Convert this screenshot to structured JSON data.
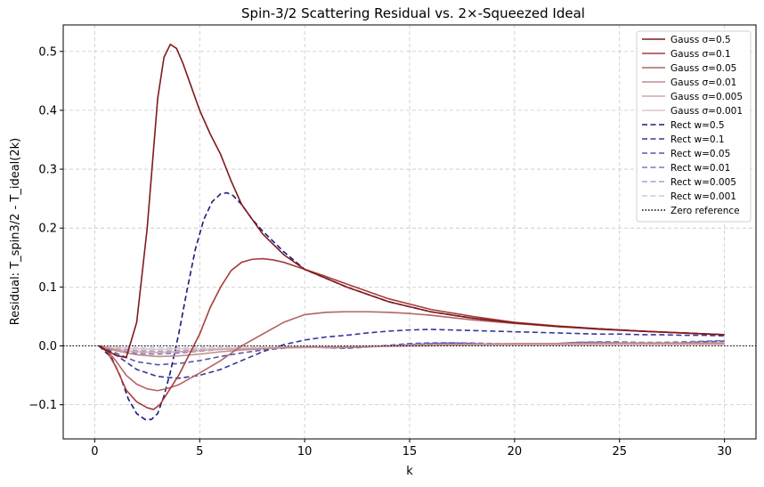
{
  "chart_data": {
    "type": "line",
    "title": "Spin-3/2 Scattering Residual vs. 2×-Squeezed Ideal",
    "xlabel": "k",
    "ylabel": "Residual: T_spin3/2 - T_ideal(2k)",
    "xlim": [
      -1.5,
      31.5
    ],
    "ylim": [
      -0.158,
      0.545
    ],
    "xticks": [
      0,
      5,
      10,
      15,
      20,
      25,
      30
    ],
    "yticks": [
      -0.1,
      0.0,
      0.1,
      0.2,
      0.3,
      0.4,
      0.5
    ],
    "grid": true,
    "legend_position": "top-right",
    "series": [
      {
        "name": "Gauss σ=0.5",
        "color": "#7f1a1a",
        "alpha": 1.0,
        "dash": "solid",
        "x": [
          0.2,
          1.0,
          1.5,
          2.0,
          2.5,
          3.0,
          3.3,
          3.6,
          3.9,
          4.2,
          4.6,
          5.0,
          5.5,
          6.0,
          6.5,
          7.0,
          8.0,
          9.0,
          10.0,
          12.0,
          14.0,
          16.0,
          18.0,
          20.0,
          22.0,
          24.0,
          26.0,
          28.0,
          30.0
        ],
        "y": [
          0.0,
          -0.016,
          -0.02,
          0.04,
          0.2,
          0.42,
          0.49,
          0.512,
          0.505,
          0.48,
          0.44,
          0.4,
          0.36,
          0.325,
          0.28,
          0.24,
          0.19,
          0.155,
          0.13,
          0.1,
          0.075,
          0.058,
          0.047,
          0.039,
          0.033,
          0.029,
          0.025,
          0.022,
          0.019
        ]
      },
      {
        "name": "Gauss σ=0.1",
        "color": "#a63c3c",
        "alpha": 1.0,
        "dash": "solid",
        "x": [
          0.2,
          0.6,
          1.0,
          1.5,
          2.0,
          2.5,
          2.8,
          3.1,
          3.5,
          4.0,
          4.5,
          5.0,
          5.5,
          6.0,
          6.5,
          7.0,
          7.5,
          8.0,
          8.5,
          9.0,
          10.0,
          11.0,
          12.0,
          14.0,
          16.0,
          18.0,
          20.0,
          22.0,
          24.0,
          26.0,
          28.0,
          30.0
        ],
        "y": [
          0.0,
          -0.01,
          -0.035,
          -0.075,
          -0.095,
          -0.105,
          -0.108,
          -0.1,
          -0.078,
          -0.05,
          -0.015,
          0.02,
          0.065,
          0.1,
          0.128,
          0.142,
          0.147,
          0.148,
          0.146,
          0.142,
          0.13,
          0.118,
          0.105,
          0.08,
          0.062,
          0.05,
          0.04,
          0.034,
          0.029,
          0.025,
          0.022,
          0.019
        ]
      },
      {
        "name": "Gauss σ=0.05",
        "color": "#b46464",
        "alpha": 1.0,
        "dash": "solid",
        "x": [
          0.2,
          0.6,
          1.0,
          1.5,
          2.0,
          2.5,
          3.0,
          3.5,
          4.0,
          4.5,
          5.0,
          6.0,
          7.0,
          8.0,
          9.0,
          10.0,
          11.0,
          12.0,
          13.0,
          14.0,
          15.0,
          16.0,
          18.0,
          20.0,
          22.0,
          24.0,
          26.0,
          28.0,
          30.0
        ],
        "y": [
          0.0,
          -0.008,
          -0.025,
          -0.05,
          -0.065,
          -0.073,
          -0.076,
          -0.072,
          -0.066,
          -0.056,
          -0.046,
          -0.025,
          0.0,
          0.02,
          0.04,
          0.053,
          0.057,
          0.058,
          0.058,
          0.057,
          0.055,
          0.052,
          0.044,
          0.038,
          0.033,
          0.028,
          0.025,
          0.022,
          0.019
        ]
      },
      {
        "name": "Gauss σ=0.01",
        "color": "#c08a8a",
        "alpha": 1.0,
        "dash": "solid",
        "x": [
          0.2,
          1.0,
          2.0,
          3.0,
          4.0,
          5.0,
          6.0,
          7.0,
          8.0,
          9.0,
          10.0,
          11.0,
          12.0,
          14.0,
          16.0,
          18.0,
          20.0,
          22.0,
          24.0,
          26.0,
          28.0,
          30.0
        ],
        "y": [
          0.0,
          -0.008,
          -0.015,
          -0.018,
          -0.017,
          -0.014,
          -0.01,
          -0.007,
          -0.005,
          -0.003,
          -0.002,
          -0.002,
          -0.002,
          0.0,
          0.002,
          0.003,
          0.004,
          0.004,
          0.005,
          0.005,
          0.005,
          0.005
        ]
      },
      {
        "name": "Gauss σ=0.005",
        "color": "#cfa8a8",
        "alpha": 1.0,
        "dash": "solid",
        "x": [
          0.2,
          1.0,
          2.0,
          3.0,
          4.0,
          5.0,
          6.0,
          8.0,
          10.0,
          12.0,
          14.0,
          16.0,
          18.0,
          20.0,
          22.0,
          24.0,
          26.0,
          28.0,
          30.0
        ],
        "y": [
          0.0,
          -0.006,
          -0.01,
          -0.011,
          -0.01,
          -0.008,
          -0.006,
          -0.004,
          -0.003,
          -0.002,
          -0.001,
          0.0,
          0.001,
          0.002,
          0.002,
          0.003,
          0.003,
          0.003,
          0.003
        ]
      },
      {
        "name": "Gauss σ=0.001",
        "color": "#e0c6c6",
        "alpha": 1.0,
        "dash": "solid",
        "x": [
          0.2,
          1.0,
          2.0,
          3.0,
          4.0,
          6.0,
          8.0,
          10.0,
          12.0,
          15.0,
          18.0,
          21.0,
          24.0,
          27.0,
          30.0
        ],
        "y": [
          0.0,
          -0.003,
          -0.005,
          -0.006,
          -0.005,
          -0.004,
          -0.003,
          -0.002,
          -0.001,
          0.0,
          0.001,
          0.001,
          0.001,
          0.002,
          0.002
        ]
      },
      {
        "name": "Rect w=0.5",
        "color": "#1a1a7a",
        "alpha": 1.0,
        "dash": "dashed",
        "x": [
          0.2,
          0.8,
          1.2,
          1.6,
          2.0,
          2.4,
          2.7,
          3.0,
          3.3,
          3.6,
          4.0,
          4.4,
          4.8,
          5.2,
          5.6,
          6.0,
          6.3,
          6.6,
          7.0,
          7.5,
          8.0,
          9.0,
          10.0,
          12.0,
          14.0,
          16.0,
          18.0,
          20.0,
          22.0,
          24.0,
          26.0,
          28.0,
          30.0
        ],
        "y": [
          0.0,
          -0.02,
          -0.05,
          -0.09,
          -0.115,
          -0.125,
          -0.125,
          -0.115,
          -0.085,
          -0.045,
          0.02,
          0.095,
          0.165,
          0.215,
          0.245,
          0.258,
          0.26,
          0.255,
          0.24,
          0.215,
          0.195,
          0.16,
          0.13,
          0.1,
          0.075,
          0.058,
          0.047,
          0.039,
          0.033,
          0.029,
          0.025,
          0.022,
          0.019
        ]
      },
      {
        "name": "Rect w=0.1",
        "color": "#36369a",
        "alpha": 1.0,
        "dash": "dashed",
        "x": [
          0.2,
          1.0,
          2.0,
          3.0,
          4.0,
          5.0,
          6.0,
          7.0,
          8.0,
          9.0,
          10.0,
          11.0,
          12.0,
          13.0,
          14.0,
          15.0,
          16.0,
          17.0,
          18.0,
          19.0,
          20.0,
          21.0,
          22.0,
          23.0,
          24.0,
          25.0,
          26.0,
          27.0,
          28.0,
          29.0,
          30.0
        ],
        "y": [
          0.0,
          -0.015,
          -0.04,
          -0.052,
          -0.055,
          -0.05,
          -0.04,
          -0.025,
          -0.01,
          0.002,
          0.01,
          0.015,
          0.018,
          0.022,
          0.025,
          0.027,
          0.028,
          0.027,
          0.026,
          0.025,
          0.024,
          0.023,
          0.022,
          0.021,
          0.02,
          0.02,
          0.019,
          0.019,
          0.018,
          0.018,
          0.017
        ]
      },
      {
        "name": "Rect w=0.05",
        "color": "#5656b0",
        "alpha": 1.0,
        "dash": "dashed",
        "x": [
          0.2,
          1.0,
          2.0,
          3.0,
          4.0,
          5.0,
          6.0,
          7.0,
          8.0,
          9.0,
          10.0,
          11.0,
          12.0,
          13.0,
          14.0,
          15.0,
          16.0,
          17.0,
          18.0,
          19.0,
          20.0,
          21.0,
          22.0,
          23.0,
          24.0,
          25.0,
          26.0,
          27.0,
          28.0,
          29.0,
          30.0
        ],
        "y": [
          0.0,
          -0.012,
          -0.027,
          -0.032,
          -0.03,
          -0.025,
          -0.018,
          -0.012,
          -0.007,
          -0.004,
          -0.002,
          -0.003,
          -0.004,
          -0.002,
          0.001,
          0.004,
          0.005,
          0.005,
          0.004,
          0.002,
          0.001,
          0.002,
          0.004,
          0.006,
          0.006,
          0.005,
          0.004,
          0.004,
          0.005,
          0.007,
          0.008
        ]
      },
      {
        "name": "Rect w=0.01",
        "color": "#7878c2",
        "alpha": 1.0,
        "dash": "dashed",
        "x": [
          0.2,
          1.0,
          2.0,
          3.0,
          4.0,
          5.0,
          6.0,
          7.0,
          8.0,
          9.0,
          10.0,
          11.0,
          12.0,
          13.0,
          14.0,
          15.0,
          16.0,
          17.0,
          18.0,
          19.0,
          20.0,
          21.0,
          22.0,
          23.0,
          24.0,
          25.0,
          26.0,
          27.0,
          28.0,
          29.0,
          30.0
        ],
        "y": [
          0.0,
          -0.007,
          -0.013,
          -0.014,
          -0.012,
          -0.009,
          -0.006,
          -0.004,
          -0.003,
          -0.002,
          -0.002,
          -0.003,
          -0.003,
          -0.002,
          0.0,
          0.002,
          0.004,
          0.005,
          0.005,
          0.004,
          0.003,
          0.003,
          0.004,
          0.006,
          0.007,
          0.007,
          0.006,
          0.006,
          0.007,
          0.008,
          0.009
        ]
      },
      {
        "name": "Rect w=0.005",
        "color": "#a0a0d2",
        "alpha": 1.0,
        "dash": "dashed",
        "x": [
          0.2,
          1.0,
          2.0,
          3.0,
          4.0,
          5.0,
          6.0,
          8.0,
          10.0,
          12.0,
          14.0,
          16.0,
          18.0,
          20.0,
          22.0,
          24.0,
          26.0,
          28.0,
          30.0
        ],
        "y": [
          0.0,
          -0.004,
          -0.008,
          -0.009,
          -0.008,
          -0.006,
          -0.005,
          -0.003,
          -0.002,
          -0.002,
          0.0,
          0.002,
          0.003,
          0.002,
          0.003,
          0.004,
          0.004,
          0.005,
          0.005
        ]
      },
      {
        "name": "Rect w=0.001",
        "color": "#c8c8e4",
        "alpha": 1.0,
        "dash": "dashed",
        "x": [
          0.2,
          1.0,
          2.0,
          3.0,
          4.0,
          6.0,
          8.0,
          10.0,
          12.0,
          15.0,
          18.0,
          21.0,
          24.0,
          27.0,
          30.0
        ],
        "y": [
          0.0,
          -0.002,
          -0.003,
          -0.003,
          -0.003,
          -0.002,
          -0.002,
          -0.001,
          -0.001,
          0.0,
          0.001,
          0.001,
          0.001,
          0.002,
          0.002
        ]
      }
    ],
    "reference": {
      "name": "Zero reference",
      "y": 0.0,
      "color": "#000000",
      "dash": "dotted"
    }
  }
}
